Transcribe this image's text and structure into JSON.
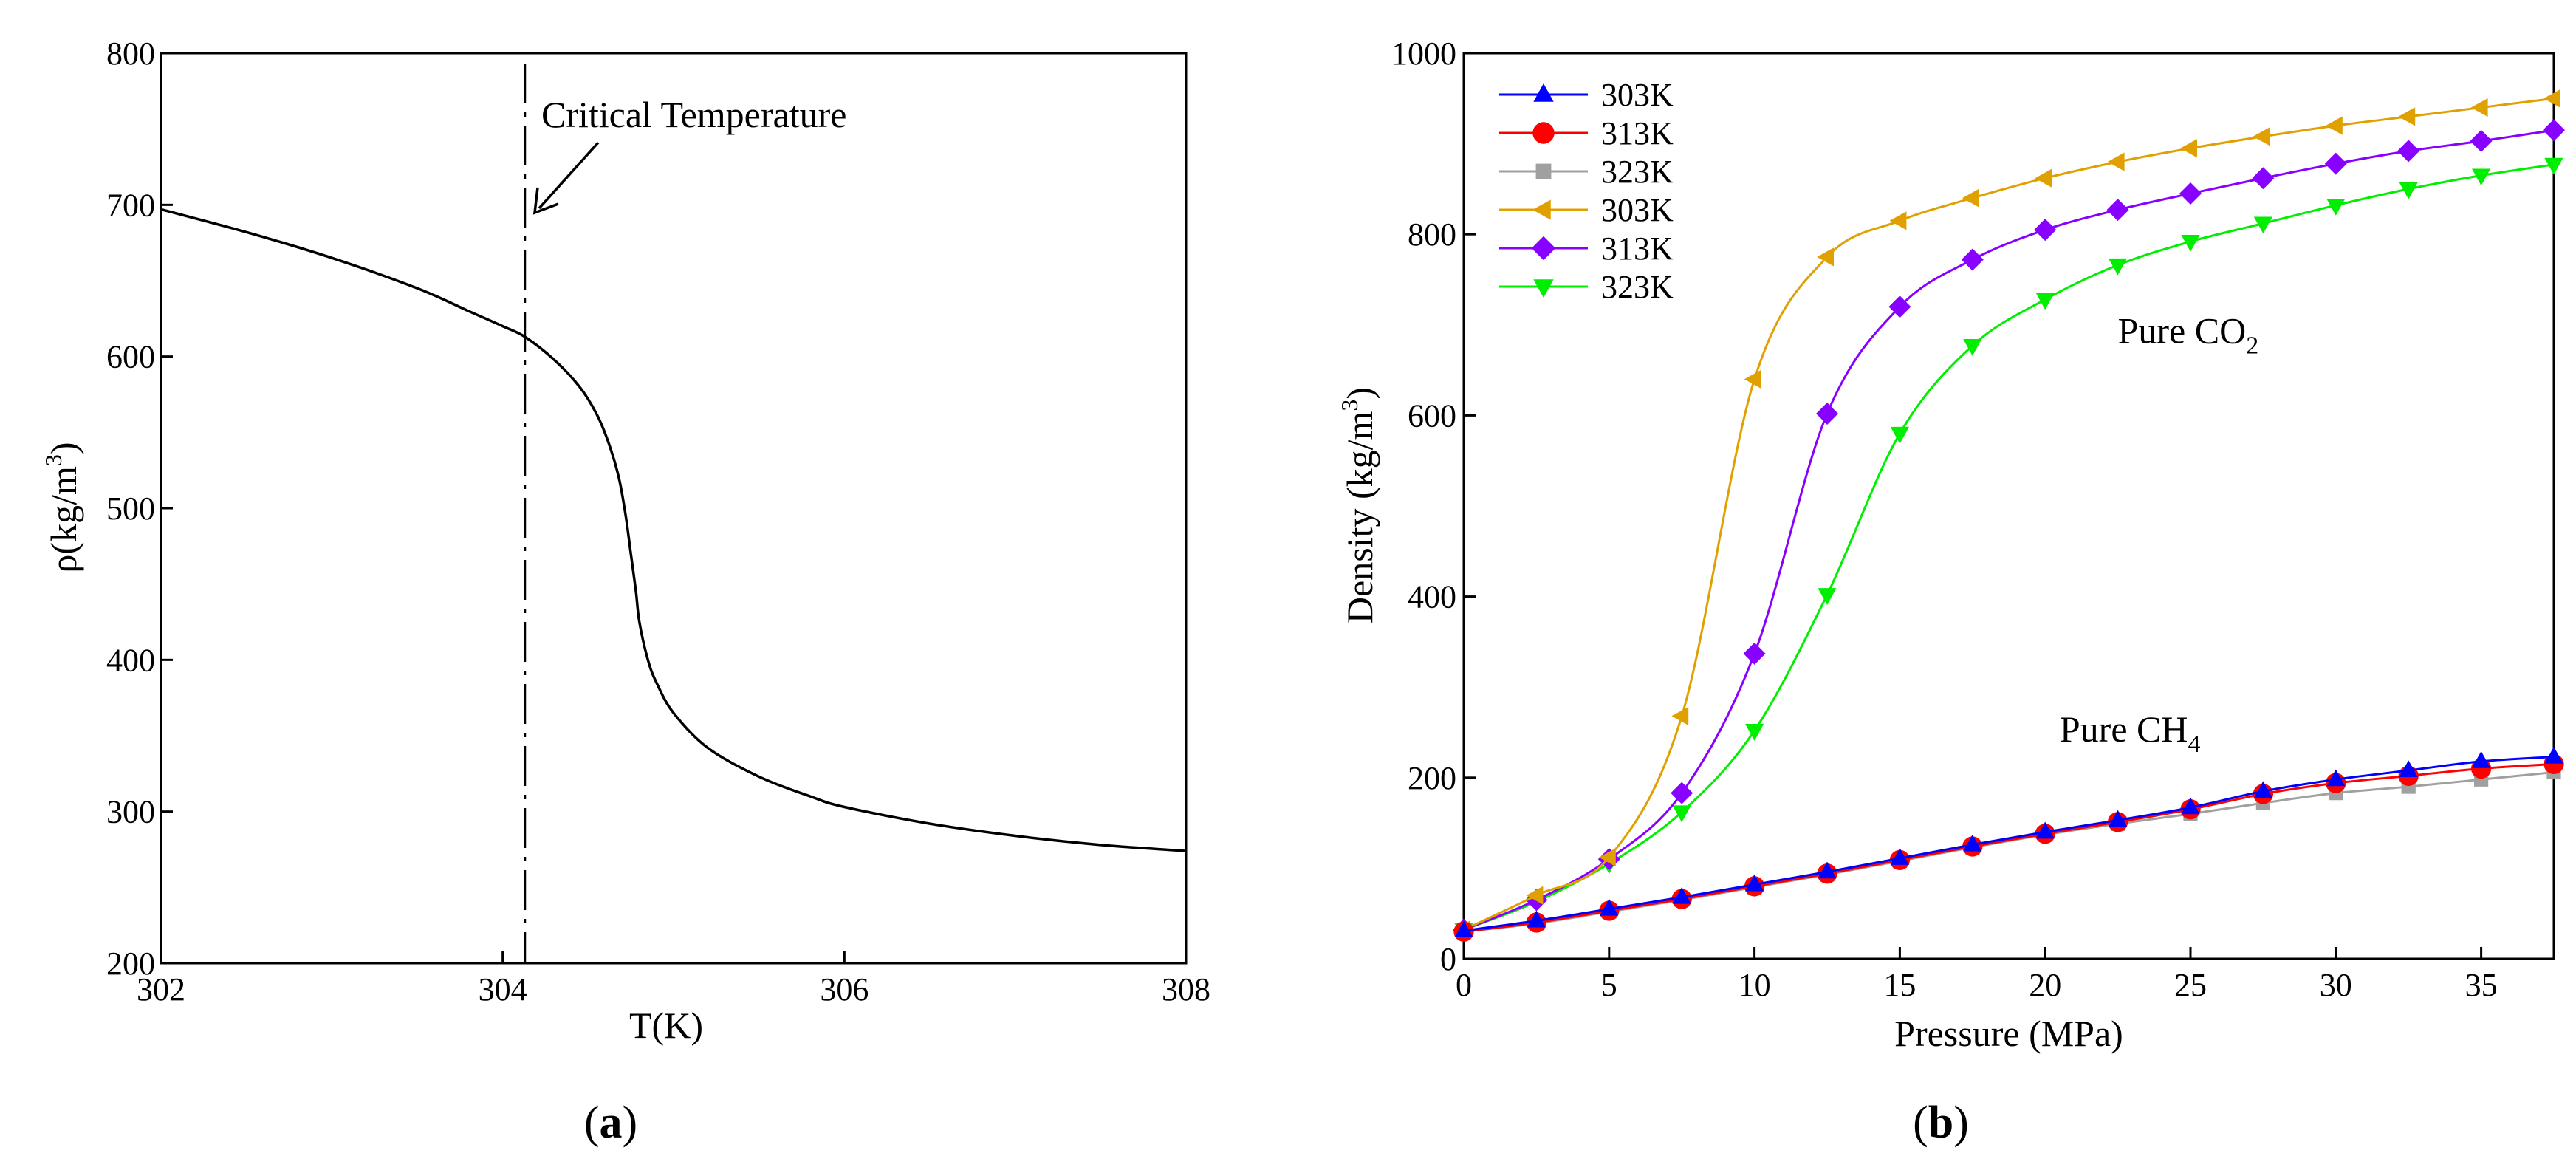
{
  "chart_data": [
    {
      "panel": "a",
      "type": "line",
      "panel_label_open": "(",
      "panel_label_letter": "a",
      "panel_label_close": ")",
      "xlabel": "T(K)",
      "ylabel_main": "ρ(kg/m",
      "ylabel_sup": "3",
      "ylabel_close": ")",
      "xlim": [
        302,
        308
      ],
      "ylim": [
        200,
        800
      ],
      "xticks": [
        302,
        304,
        306,
        308
      ],
      "yticks": [
        200,
        300,
        400,
        500,
        600,
        700,
        800
      ],
      "critical_temperature": 304.13,
      "annotation": "Critical Temperature",
      "series": [
        {
          "name": "density",
          "color": "#000000",
          "x": [
            302,
            302.5,
            303,
            303.5,
            303.8,
            304.0,
            304.13,
            304.3,
            304.45,
            304.55,
            304.62,
            304.68,
            304.72,
            304.75,
            304.78,
            304.8,
            304.85,
            304.9,
            305.0,
            305.2,
            305.5,
            305.8,
            306.0,
            306.5,
            307.0,
            307.5,
            308
          ],
          "y": [
            697,
            682,
            665,
            645,
            630,
            620,
            613,
            598,
            580,
            562,
            543,
            520,
            495,
            470,
            445,
            425,
            400,
            385,
            365,
            342,
            323,
            310,
            303,
            292,
            284,
            278,
            274
          ]
        }
      ]
    },
    {
      "panel": "b",
      "type": "line",
      "panel_label_open": "(",
      "panel_label_letter": "b",
      "panel_label_close": ")",
      "xlabel": "Pressure (MPa)",
      "ylabel_main": "Density (kg/m",
      "ylabel_sup": "3",
      "ylabel_close": ")",
      "xlim": [
        0,
        37.5
      ],
      "ylim": [
        0,
        1000
      ],
      "xticks": [
        0,
        5,
        10,
        15,
        20,
        25,
        30,
        35
      ],
      "yticks": [
        0,
        200,
        400,
        600,
        800,
        1000
      ],
      "legend_position": "top-left",
      "annotations": [
        {
          "text_main": "Pure CO",
          "text_sub": "2",
          "at_x": 22.5,
          "at_y": 680
        },
        {
          "text_main": "Pure CH",
          "text_sub": "4",
          "at_x": 20.5,
          "at_y": 240
        }
      ],
      "x": [
        0,
        2.5,
        5,
        7.5,
        10,
        12.5,
        15,
        17.5,
        20,
        22.5,
        25,
        27.5,
        30,
        32.5,
        35,
        37.5
      ],
      "series": [
        {
          "name": "303K",
          "group": "CH4",
          "color": "#0000ff",
          "marker": "triangle-up",
          "values": [
            31,
            42,
            55,
            68,
            82,
            96,
            111,
            126,
            140,
            153,
            167,
            185,
            198,
            208,
            218,
            223
          ]
        },
        {
          "name": "313K",
          "group": "CH4",
          "color": "#ff0000",
          "marker": "circle",
          "values": [
            30,
            40,
            53,
            66,
            80,
            94,
            109,
            124,
            138,
            151,
            165,
            182,
            194,
            202,
            210,
            215
          ]
        },
        {
          "name": "323K",
          "group": "CH4",
          "color": "#a0a0a0",
          "marker": "square",
          "values": [
            30,
            39,
            52,
            65,
            79,
            93,
            108,
            123,
            137,
            149,
            160,
            172,
            183,
            190,
            198,
            206
          ]
        },
        {
          "name": "303K",
          "group": "CO2",
          "color": "#e0a000",
          "marker": "triangle-left",
          "values": [
            32,
            70,
            112,
            268,
            640,
            775,
            815,
            840,
            862,
            880,
            895,
            908,
            920,
            930,
            940,
            950
          ]
        },
        {
          "name": "313K",
          "group": "CO2",
          "color": "#8800ff",
          "marker": "diamond",
          "values": [
            32,
            65,
            110,
            183,
            337,
            602,
            720,
            772,
            805,
            827,
            845,
            862,
            878,
            892,
            903,
            915
          ]
        },
        {
          "name": "323K",
          "group": "CO2",
          "color": "#00ee00",
          "marker": "triangle-down",
          "values": [
            32,
            63,
            105,
            162,
            252,
            402,
            580,
            677,
            728,
            766,
            792,
            812,
            832,
            850,
            865,
            877
          ]
        }
      ]
    }
  ]
}
